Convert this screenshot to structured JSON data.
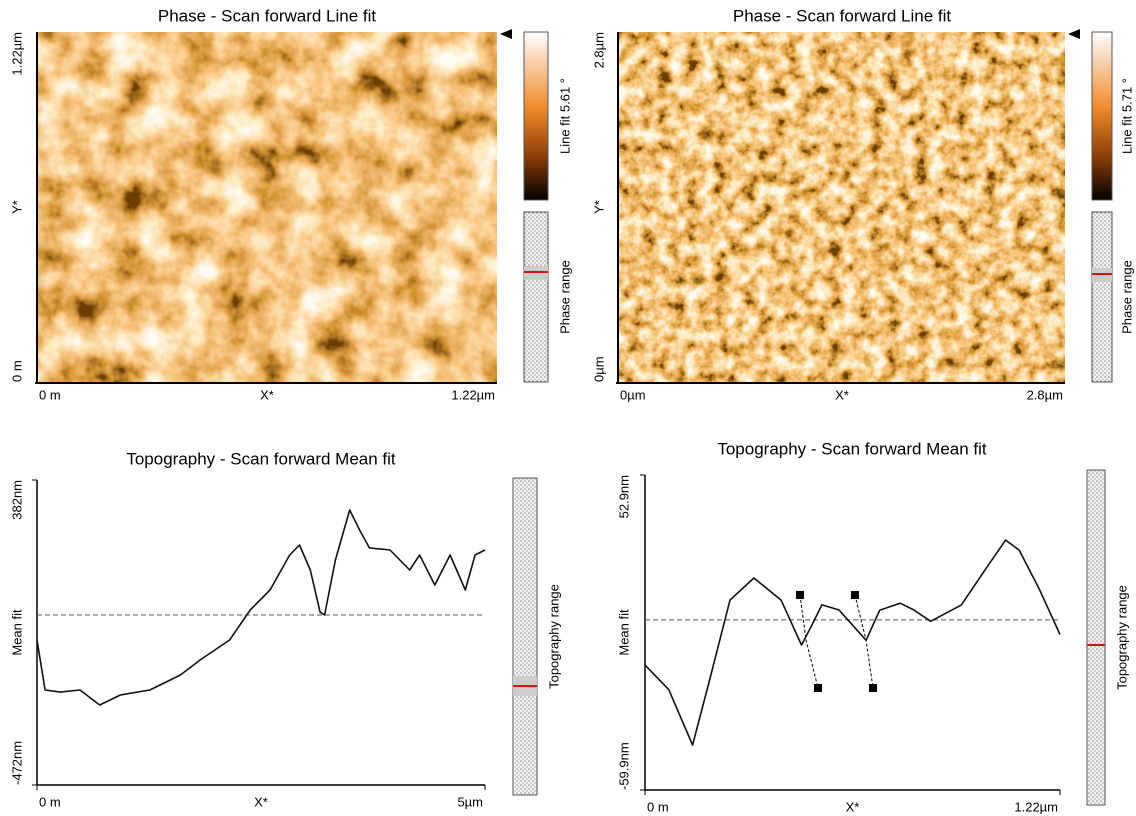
{
  "panels": [
    {
      "title": "Phase - Scan forward   Line fit",
      "y_ticks": [
        "1.22µm",
        "0 m"
      ],
      "y_label": "Y*",
      "x_ticks": [
        "0 m",
        "1.22µm"
      ],
      "x_label": "X*",
      "colorbar_label": "Line fit 5.61 °",
      "range_label": "Phase range"
    },
    {
      "title": "Phase - Scan forward   Line fit",
      "y_ticks": [
        "2.8µm",
        "0µm"
      ],
      "y_label": "Y*",
      "x_ticks": [
        "0µm",
        "2.8µm"
      ],
      "x_label": "X*",
      "colorbar_label": "Line fit 5.71 °",
      "range_label": "Phase range"
    }
  ],
  "chart_data": [
    {
      "type": "line",
      "title": "Topography - Scan forward   Mean fit",
      "y_label": "Mean fit",
      "x_label": "X*",
      "range_label": "Topography range",
      "color": "#111111",
      "x": [
        0,
        0.09,
        0.26,
        0.48,
        0.7,
        0.93,
        1.26,
        1.6,
        1.82,
        2.15,
        2.38,
        2.6,
        2.82,
        2.93,
        3.05,
        3.16,
        3.21,
        3.33,
        3.49,
        3.6,
        3.71,
        3.94,
        4.16,
        4.27,
        4.44,
        4.61,
        4.78,
        4.89,
        5
      ],
      "values": [
        -66,
        -206,
        -212,
        -206,
        -248,
        -220,
        -206,
        -164,
        -122,
        -66,
        18,
        74,
        172,
        200,
        130,
        12,
        4,
        158,
        298,
        242,
        192,
        186,
        130,
        172,
        88,
        172,
        74,
        172,
        186
      ],
      "mean_line": 4,
      "xlim": [
        0,
        5
      ],
      "xticks": [
        {
          "value": 0,
          "label": "0 m"
        },
        {
          "value": 5,
          "label": "5µm"
        }
      ],
      "ylim": [
        -472,
        382
      ],
      "yticks": [
        {
          "value": 382,
          "label": "382nm"
        },
        {
          "value": -472,
          "label": "-472nm"
        }
      ]
    },
    {
      "type": "line",
      "title": "Topography - Scan forward   Mean fit",
      "y_label": "Mean fit",
      "x_label": "X*",
      "range_label": "Topography range",
      "color": "#111111",
      "x": [
        0,
        0.07,
        0.14,
        0.19,
        0.25,
        0.32,
        0.4,
        0.46,
        0.49,
        0.52,
        0.57,
        0.65,
        0.69,
        0.75,
        0.79,
        0.84,
        0.93,
        1.0,
        1.06,
        1.1,
        1.16,
        1.22
      ],
      "values": [
        -15.1,
        -24,
        -43.8,
        -20.5,
        8.1,
        16,
        8.1,
        -8,
        -1,
        6.4,
        4.6,
        -6.3,
        4.5,
        7,
        4.6,
        0.5,
        6.4,
        19,
        29.6,
        26,
        11.8,
        -4.2
      ],
      "mean_line": 1,
      "xlim": [
        0,
        1.22
      ],
      "xticks": [
        {
          "value": 0,
          "label": "0 m"
        },
        {
          "value": 1.22,
          "label": "1.22µm"
        }
      ],
      "ylim": [
        -59.9,
        52.9
      ],
      "yticks": [
        {
          "value": 52.9,
          "label": "52.9nm"
        },
        {
          "value": -59.9,
          "label": "-59.9nm"
        }
      ]
    }
  ]
}
